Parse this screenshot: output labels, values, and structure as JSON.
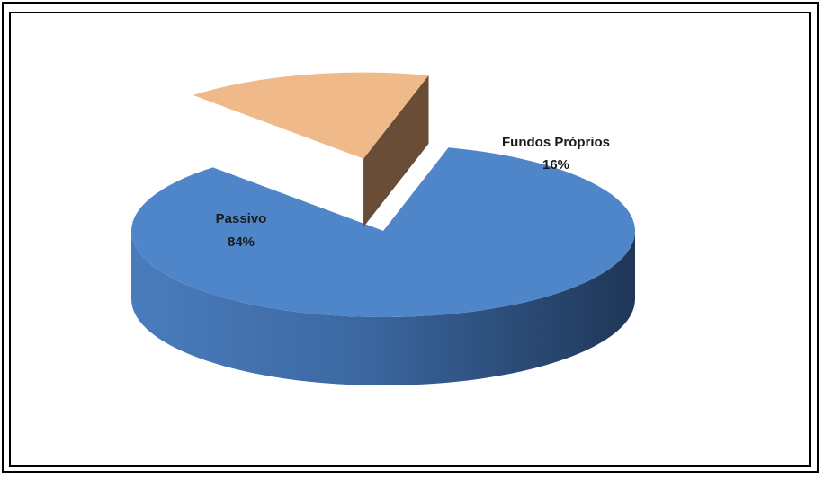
{
  "chart_data": {
    "type": "pie",
    "style": "3d-exploded",
    "slices": [
      {
        "label": "Passivo",
        "value": 84,
        "value_label": "84%",
        "color": "#4f86c9",
        "side_color": "#3b6aa6",
        "dark_color": "#22395b"
      },
      {
        "label": "Fundos Próprios",
        "value": 16,
        "value_label": "16%",
        "color": "#f0b98a",
        "side_color": "#6a4d36",
        "dark_color": "#5a3f2a"
      }
    ],
    "exploded_slice": "Fundos Próprios",
    "legend": "none"
  }
}
